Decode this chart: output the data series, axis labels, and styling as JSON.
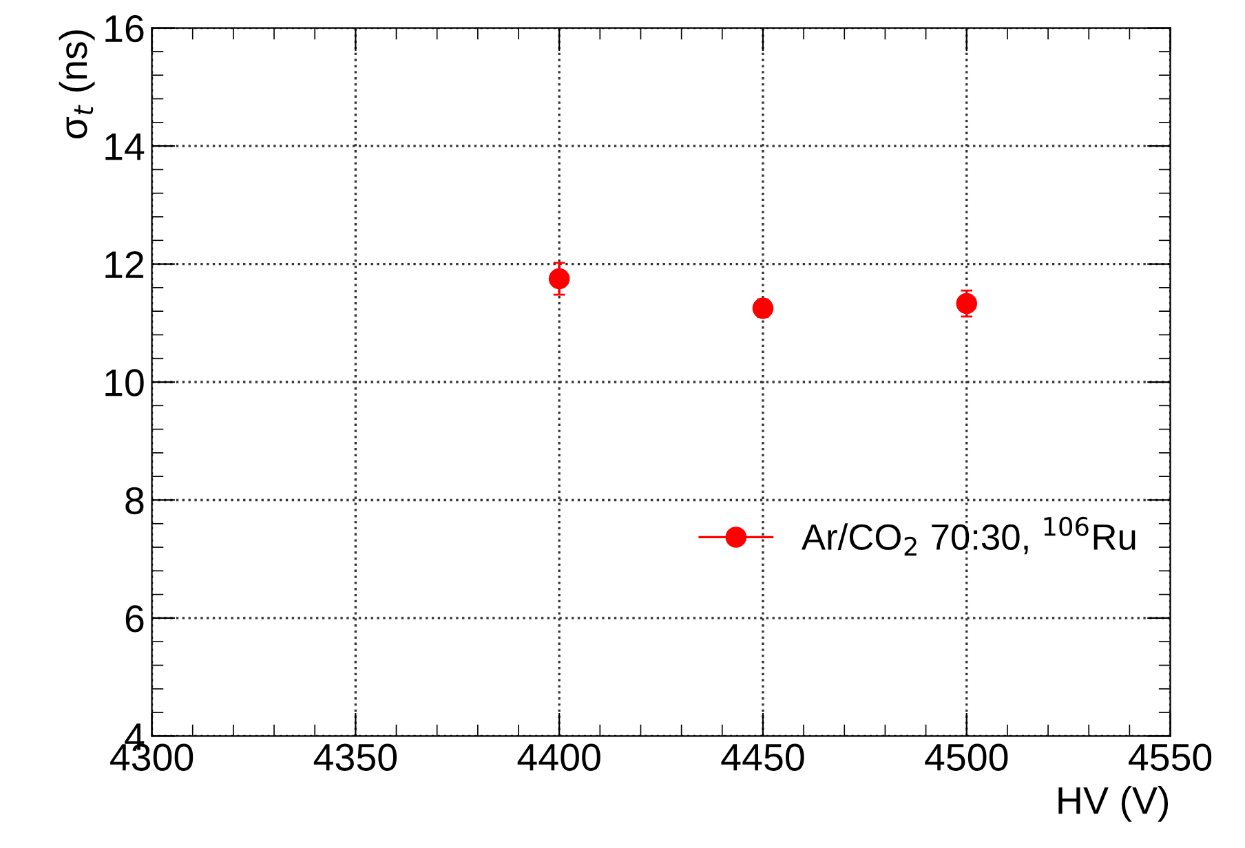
{
  "chart_data": {
    "type": "scatter",
    "xlabel": "HV (V)",
    "ylabel": "σ$_{t}$ (ns)",
    "x": [
      4400,
      4450,
      4500
    ],
    "series": [
      {
        "name": "Ar/CO$_{2}$ 70:30, $^{106}$Ru",
        "color": "#ff0000",
        "values": [
          11.75,
          11.25,
          11.33
        ],
        "errors": [
          0.27,
          0.15,
          0.22
        ]
      }
    ],
    "xlim": [
      4300,
      4550
    ],
    "xticks": [
      4300,
      4350,
      4400,
      4450,
      4500,
      4550
    ],
    "ylim": [
      4,
      16
    ],
    "yticks": [
      4,
      6,
      8,
      10,
      12,
      14,
      16
    ],
    "grid": true,
    "legend": "right",
    "marker": "circle"
  }
}
